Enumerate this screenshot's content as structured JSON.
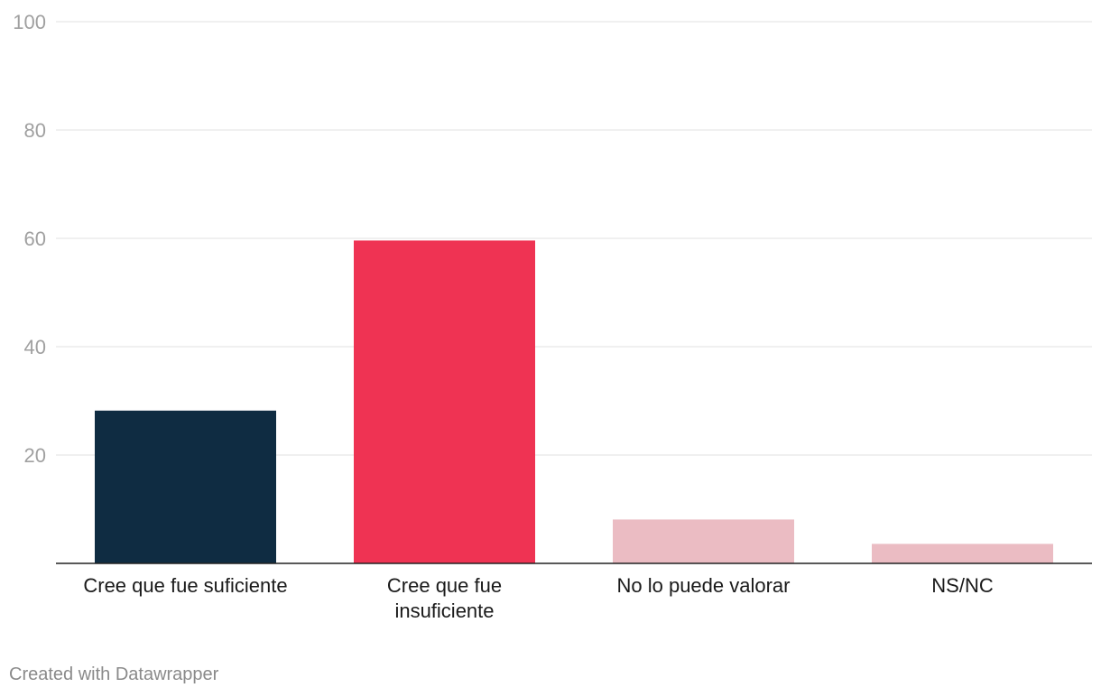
{
  "chart_data": {
    "type": "bar",
    "title": "",
    "xlabel": "",
    "ylabel": "",
    "ylim": [
      0,
      100
    ],
    "yticks": [
      20,
      40,
      60,
      80,
      100
    ],
    "grid": true,
    "categories": [
      [
        "Cree que fue suficiente"
      ],
      [
        "Cree que fue",
        "insuficiente"
      ],
      [
        "No lo puede valorar"
      ],
      [
        "NS/NC"
      ]
    ],
    "values": [
      28.2,
      59.6,
      8.1,
      3.6
    ],
    "colors": [
      "#0f2c42",
      "#ef3353",
      "#ebbcc3",
      "#ebbcc3"
    ]
  },
  "footer": {
    "credit": "Created with Datawrapper"
  }
}
